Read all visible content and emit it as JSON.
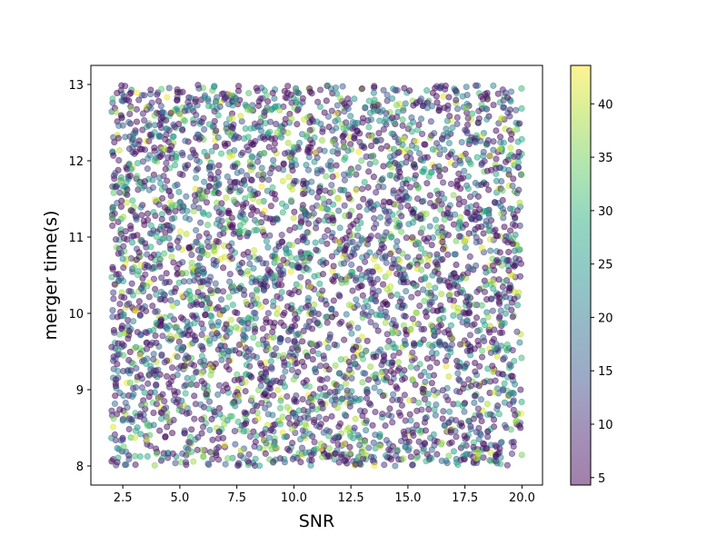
{
  "chart_data": {
    "type": "scatter",
    "title": "",
    "xlabel": "SNR",
    "ylabel": "merger time(s)",
    "xlim": [
      1.1,
      20.9
    ],
    "ylim": [
      7.75,
      13.25
    ],
    "x_ticks": [
      2.5,
      5.0,
      7.5,
      10.0,
      12.5,
      15.0,
      17.5,
      20.0
    ],
    "x_tick_labels": [
      "2.5",
      "5.0",
      "7.5",
      "10.0",
      "12.5",
      "15.0",
      "17.5",
      "20.0"
    ],
    "y_ticks": [
      8,
      9,
      10,
      11,
      12,
      13
    ],
    "y_tick_labels": [
      "8",
      "9",
      "10",
      "11",
      "12",
      "13"
    ],
    "colorbar": {
      "colormap": "viridis",
      "range": [
        4.3,
        43.6
      ],
      "ticks": [
        5,
        10,
        15,
        20,
        25,
        30,
        35,
        40
      ],
      "tick_labels": [
        "5",
        "10",
        "15",
        "20",
        "25",
        "30",
        "35",
        "40"
      ]
    },
    "marker_alpha": 0.5,
    "point_count": 4000,
    "x_range": [
      2.0,
      20.0
    ],
    "y_range": [
      8.0,
      13.0
    ],
    "color_value_distribution": "right-skewed: most values near 5-12, fewer up to ~43",
    "points": [
      {
        "x": 2.6,
        "y": 12.98,
        "c": 8.1
      },
      {
        "x": 4.9,
        "y": 12.9,
        "c": 6.2
      },
      {
        "x": 9.9,
        "y": 12.55,
        "c": 38.5
      },
      {
        "x": 19.1,
        "y": 12.56,
        "c": 41.0
      },
      {
        "x": 19.9,
        "y": 11.45,
        "c": 39.0
      },
      {
        "x": 15.1,
        "y": 9.78,
        "c": 40.5
      },
      {
        "x": 12.1,
        "y": 10.4,
        "c": 34.0
      },
      {
        "x": 18.0,
        "y": 8.1,
        "c": 42.0
      },
      {
        "x": 2.1,
        "y": 11.58,
        "c": 33.0
      },
      {
        "x": 7.1,
        "y": 8.1,
        "c": 35.0
      },
      {
        "x": 13.1,
        "y": 11.72,
        "c": 29.0
      },
      {
        "x": 17.0,
        "y": 11.55,
        "c": 37.0
      },
      {
        "x": 10.5,
        "y": 8.55,
        "c": 36.0
      },
      {
        "x": 5.1,
        "y": 9.55,
        "c": 28.0
      },
      {
        "x": 3.2,
        "y": 11.7,
        "c": 31.0
      },
      {
        "x": 16.6,
        "y": 11.23,
        "c": 33.5
      },
      {
        "x": 12.4,
        "y": 8.5,
        "c": 38.0
      },
      {
        "x": 8.7,
        "y": 12.1,
        "c": 27.0
      },
      {
        "x": 18.8,
        "y": 9.55,
        "c": 30.0
      },
      {
        "x": 6.2,
        "y": 10.18,
        "c": 26.0
      }
    ]
  }
}
